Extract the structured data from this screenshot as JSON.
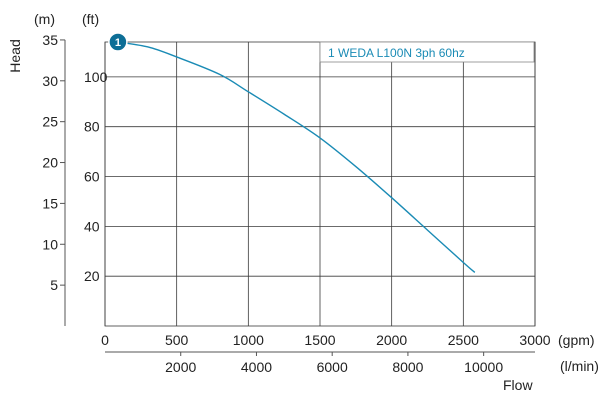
{
  "chart_data": {
    "type": "line",
    "colors": {
      "curve": "#1a8bb5",
      "marker": "#0d6e96",
      "legend_text": "#1a8bb5"
    },
    "legend": {
      "marker": "1",
      "label": "1 WEDA L100N 3ph 60hz",
      "placement": "top-right"
    },
    "y_axis_meters": {
      "unit_label": "(m)",
      "ticks": [
        "35",
        "30",
        "25",
        "20",
        "15",
        "10",
        "5"
      ],
      "title": "Head"
    },
    "y_axis_feet": {
      "unit_label": "(ft)",
      "ticks": [
        "100",
        "80",
        "60",
        "40",
        "20"
      ]
    },
    "x_axis_gpm": {
      "unit_label": "(gpm)",
      "ticks": [
        "0",
        "500",
        "1000",
        "1500",
        "2000",
        "2500",
        "3000"
      ],
      "range": [
        0,
        3000
      ]
    },
    "x_axis_lmin": {
      "unit_label": "(l/min)",
      "ticks": [
        "2000",
        "4000",
        "6000",
        "8000",
        "10000"
      ],
      "title": "Flow"
    },
    "grid": true,
    "ylim_ft": [
      0,
      114
    ],
    "series": [
      {
        "name": "1 WEDA L100N 3ph 60hz",
        "x_gpm": [
          90,
          300,
          500,
          800,
          1000,
          1250,
          1500,
          1750,
          2000,
          2250,
          2500,
          2580
        ],
        "y_head_ft": [
          114,
          112,
          108,
          101,
          94,
          85,
          75.5,
          64,
          51.5,
          38.5,
          25.5,
          21.5
        ]
      }
    ]
  }
}
